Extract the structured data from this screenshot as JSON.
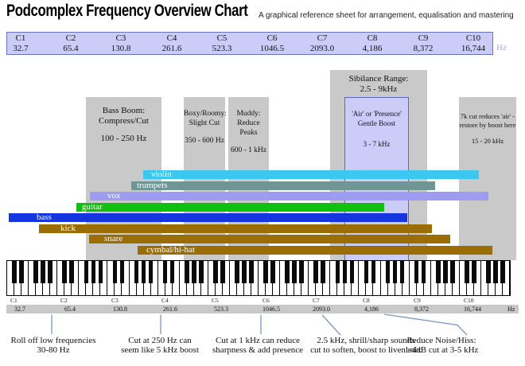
{
  "title": "Podcomplex Frequency Overview Chart",
  "subtitle": "A graphical reference sheet for arrangement, equalisation and mastering",
  "octave_scale": {
    "unit": "Hz",
    "octaves": [
      {
        "label": "C1",
        "freq": "32.7"
      },
      {
        "label": "C2",
        "freq": "65.4"
      },
      {
        "label": "C3",
        "freq": "130.8"
      },
      {
        "label": "C4",
        "freq": "261.6"
      },
      {
        "label": "C5",
        "freq": "523.3"
      },
      {
        "label": "C6",
        "freq": "1046.5"
      },
      {
        "label": "C7",
        "freq": "2093.0"
      },
      {
        "label": "C8",
        "freq": "4,186"
      },
      {
        "label": "C9",
        "freq": "8,372"
      },
      {
        "label": "C10",
        "freq": "16,744"
      }
    ]
  },
  "zones": {
    "bass_boom": {
      "line1": "Bass Boom:",
      "line2": "Compress/Cut",
      "range": "100 - 250 Hz"
    },
    "boxy": {
      "line1": "Boxy/Roomy:",
      "line2": "Slight Cut",
      "range": "350 - 600 Hz"
    },
    "muddy": {
      "line1": "Muddy:",
      "line2": "Reduce Peaks",
      "range": "600 - 1 kHz"
    },
    "sibilance": {
      "line1": "Sibilance Range:",
      "line2": "2.5 - 9kHz"
    },
    "air": {
      "line1": "'Air' or 'Presence'",
      "line2": "Gentle Boost",
      "range": "3 - 7 kHz"
    },
    "air_cut": {
      "line1": "7k cut reduces 'air' -",
      "line2": "restore by boost here",
      "range": "15 - 20 kHz"
    }
  },
  "instruments": [
    {
      "name": "violin",
      "color": "#3cc7f0"
    },
    {
      "name": "trumpets",
      "color": "#6f9595"
    },
    {
      "name": "vox",
      "color": "#9c9cf0"
    },
    {
      "name": "guitar",
      "color": "#0fc00f"
    },
    {
      "name": "bass",
      "color": "#1535e0"
    },
    {
      "name": "kick",
      "color": "#9a6d05"
    },
    {
      "name": "snare",
      "color": "#9a6d05"
    },
    {
      "name": "cymbal/hi-hat",
      "color": "#9a6d05"
    }
  ],
  "annotations": [
    {
      "line1": "Roll off low frequencies",
      "line2": "30-80 Hz"
    },
    {
      "line1": "Cut at 250 Hz can",
      "line2": "seem like 5 kHz boost"
    },
    {
      "line1": "Cut at 1 kHz can reduce",
      "line2": "sharpness & add presence"
    },
    {
      "line1": "2.5 kHz, shrill/sharp sounds",
      "line2": "cut to soften, boost to liven mix"
    },
    {
      "line1": "Reduce Noise/Hiss:",
      "line2": "1-4dB cut at 3-5 kHz"
    }
  ],
  "colors": {
    "zone_gray": "#c9c9c9",
    "table_lavender": "#ccccf8",
    "table_border": "#6672c4",
    "air_border": "#5566cc",
    "leader_line": "#7b98c8",
    "hz_top_label": "#a6aede"
  },
  "chart_data": {
    "type": "bar",
    "title": "Podcomplex Frequency Overview Chart",
    "subtitle": "A graphical reference sheet for arrangement, equalisation and mastering",
    "x_axis": {
      "scale": "logarithmic by octave",
      "tick_labels": [
        "C1",
        "C2",
        "C3",
        "C4",
        "C5",
        "C6",
        "C7",
        "C8",
        "C9",
        "C10"
      ],
      "tick_frequencies_hz": [
        32.7,
        65.4,
        130.8,
        261.6,
        523.3,
        1046.5,
        2093.0,
        4186,
        8372,
        16744
      ],
      "unit": "Hz"
    },
    "series": [
      {
        "name": "violin",
        "approx_range_hz": [
          200,
          18000
        ],
        "color": "#3cc7f0"
      },
      {
        "name": "trumpets",
        "approx_range_hz": [
          170,
          10000
        ],
        "color": "#6f9595"
      },
      {
        "name": "vox",
        "approx_range_hz": [
          100,
          18000
        ],
        "color": "#9c9cf0"
      },
      {
        "name": "guitar",
        "approx_range_hz": [
          80,
          5000
        ],
        "color": "#0fc00f"
      },
      {
        "name": "bass",
        "approx_range_hz": [
          32,
          5000
        ],
        "color": "#1535e0"
      },
      {
        "name": "kick",
        "approx_range_hz": [
          50,
          8000
        ],
        "color": "#9a6d05"
      },
      {
        "name": "snare",
        "approx_range_hz": [
          100,
          11000
        ],
        "color": "#9a6d05"
      },
      {
        "name": "cymbal/hi-hat",
        "approx_range_hz": [
          190,
          20000
        ],
        "color": "#9a6d05"
      }
    ],
    "eq_zones": [
      {
        "label": "Bass Boom: Compress/Cut",
        "range_hz": [
          100,
          250
        ]
      },
      {
        "label": "Boxy/Roomy: Slight Cut",
        "range_hz": [
          350,
          600
        ]
      },
      {
        "label": "Muddy: Reduce Peaks",
        "range_hz": [
          600,
          1000
        ]
      },
      {
        "label": "Sibilance Range",
        "range_hz": [
          2500,
          9000
        ]
      },
      {
        "label": "'Air' or 'Presence' Gentle Boost",
        "range_hz": [
          3000,
          7000
        ]
      },
      {
        "label": "7k cut reduces 'air' - restore by boost here",
        "range_hz": [
          15000,
          20000
        ]
      }
    ]
  }
}
